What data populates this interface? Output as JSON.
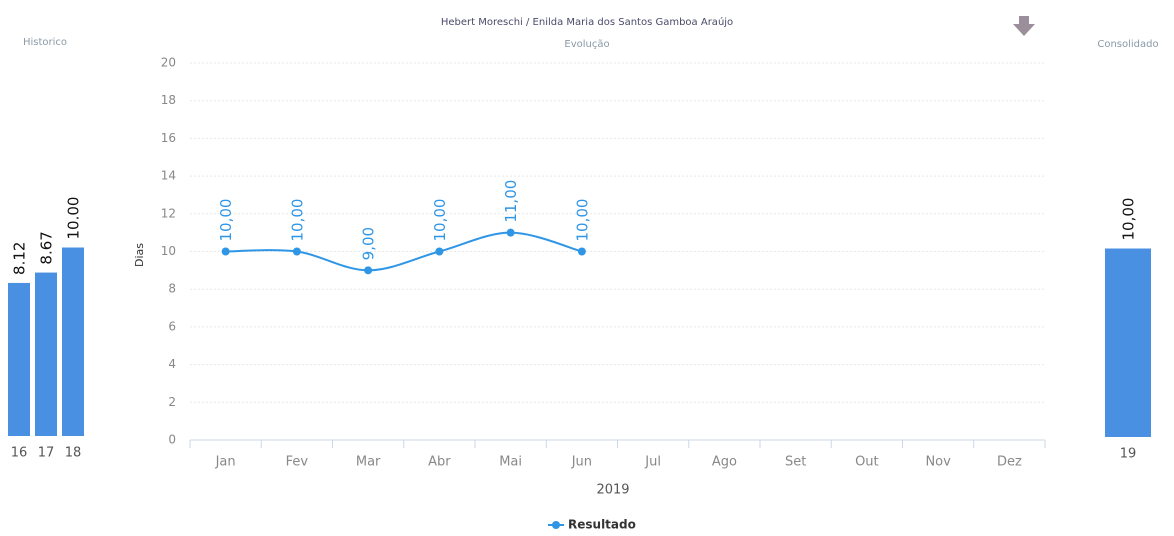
{
  "chart_data": [
    {
      "type": "bar",
      "title": "Historico",
      "categories": [
        "16",
        "17",
        "18"
      ],
      "values": [
        8.12,
        8.67,
        10.0
      ],
      "value_labels": [
        "8.12",
        "8.67",
        "10.00"
      ],
      "color": "#4a90e2"
    },
    {
      "type": "line",
      "title": "Hebert Moreschi / Enilda Maria dos Santos Gamboa Araújo",
      "subtitle": "Evolução",
      "y_label": "Dias",
      "x_label": "2019",
      "categories": [
        "Jan",
        "Fev",
        "Mar",
        "Abr",
        "Mai",
        "Jun",
        "Jul",
        "Ago",
        "Set",
        "Out",
        "Nov",
        "Dez"
      ],
      "series": [
        {
          "name": "Resultado",
          "color": "#2f96e6",
          "values": [
            10,
            10,
            9,
            10,
            11,
            10,
            null,
            null,
            null,
            null,
            null,
            null
          ],
          "value_labels": [
            "10,00",
            "10,00",
            "9,00",
            "10,00",
            "11,00",
            "10,00",
            null,
            null,
            null,
            null,
            null,
            null
          ]
        }
      ],
      "ylim": [
        0,
        20
      ],
      "yticks": [
        0,
        2,
        4,
        6,
        8,
        10,
        12,
        14,
        16,
        18,
        20
      ],
      "grid": true,
      "legend": "bottom"
    },
    {
      "type": "bar",
      "title": "Consolidado",
      "categories": [
        "19"
      ],
      "values": [
        10
      ],
      "value_labels": [
        "10,00"
      ],
      "color": "#4a90e2"
    }
  ]
}
